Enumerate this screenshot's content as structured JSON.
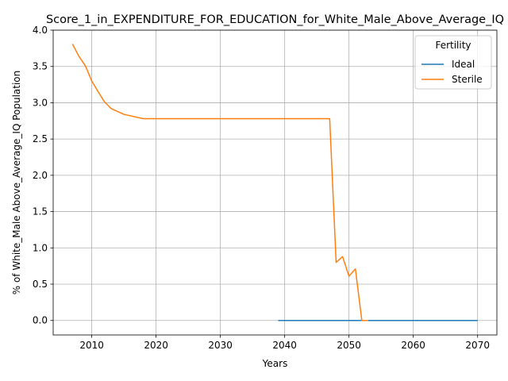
{
  "chart_data": {
    "type": "line",
    "title": "Score_1_in_EXPENDITURE_FOR_EDUCATION_for_White_Male_Above_Average_IQ",
    "xlabel": "Years",
    "ylabel": "% of White_Male Above_Average_IQ Population",
    "xlim": [
      2004,
      2073
    ],
    "ylim": [
      -0.2,
      4.0
    ],
    "xticks": [
      2010,
      2020,
      2030,
      2040,
      2050,
      2060,
      2070
    ],
    "yticks": [
      0.0,
      0.5,
      1.0,
      1.5,
      2.0,
      2.5,
      3.0,
      3.5,
      4.0
    ],
    "xtick_labels": [
      "2010",
      "2020",
      "2030",
      "2040",
      "2050",
      "2060",
      "2070"
    ],
    "ytick_labels": [
      "0.0",
      "0.5",
      "1.0",
      "1.5",
      "2.0",
      "2.5",
      "3.0",
      "3.5",
      "4.0"
    ],
    "grid": true,
    "legend": {
      "title": "Fertility",
      "placement": "top-right"
    },
    "series": [
      {
        "name": "Ideal",
        "color": "#1f77b4",
        "x": [
          2039,
          2045,
          2050,
          2055,
          2060,
          2065,
          2070
        ],
        "y": [
          0,
          0,
          0,
          0,
          0,
          0,
          0
        ]
      },
      {
        "name": "Sterile",
        "color": "#ff7f0e",
        "x": [
          2007,
          2008,
          2009,
          2010,
          2011,
          2012,
          2013,
          2015,
          2018,
          2020,
          2025,
          2030,
          2035,
          2040,
          2045,
          2047,
          2048,
          2049,
          2050,
          2051,
          2052,
          2053
        ],
        "y": [
          3.81,
          3.64,
          3.51,
          3.3,
          3.15,
          3.01,
          2.92,
          2.84,
          2.78,
          2.78,
          2.78,
          2.78,
          2.78,
          2.78,
          2.78,
          2.78,
          0.8,
          0.88,
          0.61,
          0.71,
          0.0,
          0.0
        ]
      }
    ]
  }
}
